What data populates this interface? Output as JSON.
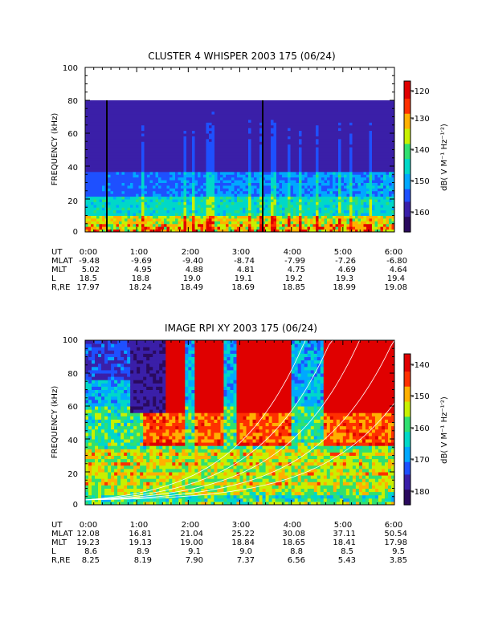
{
  "chart_data": [
    {
      "type": "heatmap",
      "title": "CLUSTER 4 WHISPER 2003 175 (06/24)",
      "ylabel": "FREQUENCY (kHz)",
      "ylim": [
        0,
        100
      ],
      "yticks": [
        "0",
        "20",
        "40",
        "60",
        "80",
        "100"
      ],
      "data_max_frequency": 80,
      "colorbar": {
        "label": "dB( V M⁻¹ Hz⁻¹′²)",
        "range": [
          -167,
          -118
        ],
        "ticks": [
          "-120",
          "-130",
          "-140",
          "-150",
          "-160"
        ]
      },
      "ephemeris": {
        "row_labels": [
          "UT",
          "MLAT",
          "MLT",
          "L",
          "R,RE"
        ],
        "UT": [
          "0:00",
          "1:00",
          "2:00",
          "3:00",
          "4:00",
          "5:00",
          "6:00"
        ],
        "MLAT": [
          "-9.48",
          "-9.69",
          "-9.40",
          "-8.74",
          "-7.99",
          "-7.26",
          "-6.80"
        ],
        "MLT": [
          "5.02",
          "4.95",
          "4.88",
          "4.81",
          "4.75",
          "4.69",
          "4.64"
        ],
        "L": [
          "18.5",
          "18.8",
          "19.0",
          "19.1",
          "19.2",
          "19.3",
          "19.4"
        ],
        "R,RE": [
          "17.97",
          "18.24",
          "18.49",
          "18.69",
          "18.85",
          "18.99",
          "19.08"
        ]
      },
      "colormap": [
        "#2a0a5e",
        "#3a1fa8",
        "#1e50ff",
        "#00a8ff",
        "#00d8c8",
        "#30e070",
        "#c8f000",
        "#ffb000",
        "#ff3000",
        "#e00000"
      ]
    },
    {
      "type": "heatmap",
      "title": "IMAGE RPI XY 2003 175 (06/24)",
      "ylabel": "FREQUENCY (kHz)",
      "ylim": [
        0,
        100
      ],
      "yticks": [
        "0",
        "20",
        "40",
        "60",
        "80",
        "100"
      ],
      "colorbar": {
        "label": "dB( V M⁻¹ Hz⁻¹′²)",
        "range": [
          -185,
          -135
        ],
        "ticks": [
          "-140",
          "-150",
          "-160",
          "-170",
          "-180"
        ]
      },
      "ephemeris": {
        "row_labels": [
          "UT",
          "MLAT",
          "MLT",
          "L",
          "R,RE"
        ],
        "UT": [
          "0:00",
          "1:00",
          "2:00",
          "3:00",
          "4:00",
          "5:00",
          "6:00"
        ],
        "MLAT": [
          "12.08",
          "16.81",
          "21.04",
          "25.22",
          "30.08",
          "37.11",
          "50.54"
        ],
        "MLT": [
          "19.23",
          "19.13",
          "19.00",
          "18.84",
          "18.65",
          "18.41",
          "17.98"
        ],
        "L": [
          "8.6",
          "8.9",
          "9.1",
          "9.0",
          "8.8",
          "8.5",
          "9.5"
        ],
        "R,RE": [
          "8.25",
          "8.19",
          "7.90",
          "7.37",
          "6.56",
          "5.43",
          "3.85"
        ]
      },
      "colormap": [
        "#2a0a5e",
        "#3a1fa8",
        "#1e50ff",
        "#00a8ff",
        "#00d8c8",
        "#30e070",
        "#c8f000",
        "#ffb000",
        "#ff3000",
        "#e00000"
      ]
    }
  ]
}
